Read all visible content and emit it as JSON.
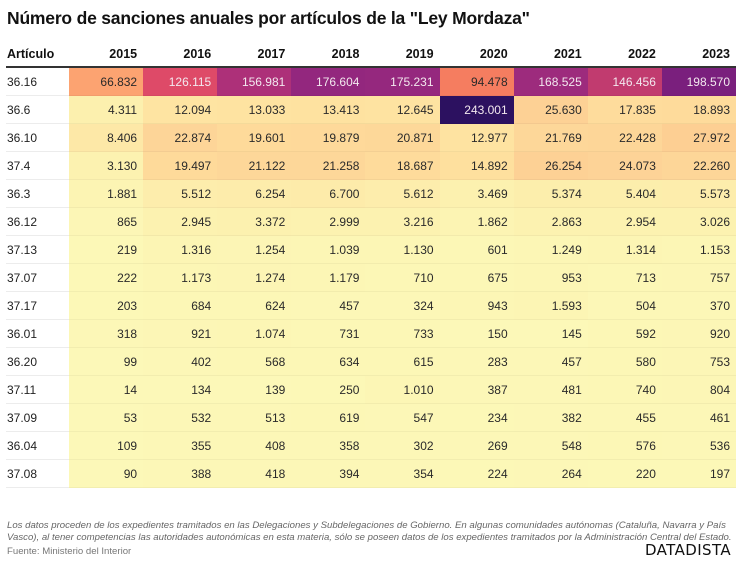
{
  "title": "Número de sanciones anuales por artículos de la \"Ley Mordaza\"",
  "footer": {
    "note": "Los datos proceden de los expedientes tramitados en las Delegaciones y Subdelegaciones de Gobierno. En algunas comunidades autónomas (Cataluña, Navarra y País Vasco), al tener competencias las autoridades autonómicas en esta materia, sólo se poseen datos de los expedientes tramitados por la Administración Central del Estado.",
    "source": "Fuente: Ministerio del Interior",
    "brand": "DATADISTA"
  },
  "chart_data": {
    "type": "heatmap",
    "title": "Número de sanciones anuales por artículos de la \"Ley Mordaza\"",
    "row_header": "Artículo",
    "columns": [
      "2015",
      "2016",
      "2017",
      "2018",
      "2019",
      "2020",
      "2021",
      "2022",
      "2023"
    ],
    "number_format": "es (dot thousands separator)",
    "color_scale": {
      "name": "magma-reversed",
      "min": 14,
      "max": 243001,
      "stops": [
        "#fcf8b8",
        "#fde6a6",
        "#fdd296",
        "#fca371",
        "#f57c60",
        "#de4a68",
        "#c23b6f",
        "#9b2a7e",
        "#7a1f7d",
        "#2c1160"
      ]
    },
    "rows": [
      {
        "label": "36.16",
        "values": [
          66832,
          126115,
          156981,
          176604,
          175231,
          94478,
          168525,
          146456,
          198570
        ]
      },
      {
        "label": "36.6",
        "values": [
          4311,
          12094,
          13033,
          13413,
          12645,
          243001,
          25630,
          17835,
          18893
        ]
      },
      {
        "label": "36.10",
        "values": [
          8406,
          22874,
          19601,
          19879,
          20871,
          12977,
          21769,
          22428,
          27972
        ]
      },
      {
        "label": "37.4",
        "values": [
          3130,
          19497,
          21122,
          21258,
          18687,
          14892,
          26254,
          24073,
          22260
        ]
      },
      {
        "label": "36.3",
        "values": [
          1881,
          5512,
          6254,
          6700,
          5612,
          3469,
          5374,
          5404,
          5573
        ]
      },
      {
        "label": "36.12",
        "values": [
          865,
          2945,
          3372,
          2999,
          3216,
          1862,
          2863,
          2954,
          3026
        ]
      },
      {
        "label": "37.13",
        "values": [
          219,
          1316,
          1254,
          1039,
          1130,
          601,
          1249,
          1314,
          1153
        ]
      },
      {
        "label": "37.07",
        "values": [
          222,
          1173,
          1274,
          1179,
          710,
          675,
          953,
          713,
          757
        ]
      },
      {
        "label": "37.17",
        "values": [
          203,
          684,
          624,
          457,
          324,
          943,
          1593,
          504,
          370
        ]
      },
      {
        "label": "36.01",
        "values": [
          318,
          921,
          1074,
          731,
          733,
          150,
          145,
          592,
          920
        ]
      },
      {
        "label": "36.20",
        "values": [
          99,
          402,
          568,
          634,
          615,
          283,
          457,
          580,
          753
        ]
      },
      {
        "label": "37.11",
        "values": [
          14,
          134,
          139,
          250,
          1010,
          387,
          481,
          740,
          804
        ]
      },
      {
        "label": "37.09",
        "values": [
          53,
          532,
          513,
          619,
          547,
          234,
          382,
          455,
          461
        ]
      },
      {
        "label": "36.04",
        "values": [
          109,
          355,
          408,
          358,
          302,
          269,
          548,
          576,
          536
        ]
      },
      {
        "label": "37.08",
        "values": [
          90,
          388,
          418,
          394,
          354,
          224,
          264,
          220,
          197
        ]
      }
    ]
  }
}
